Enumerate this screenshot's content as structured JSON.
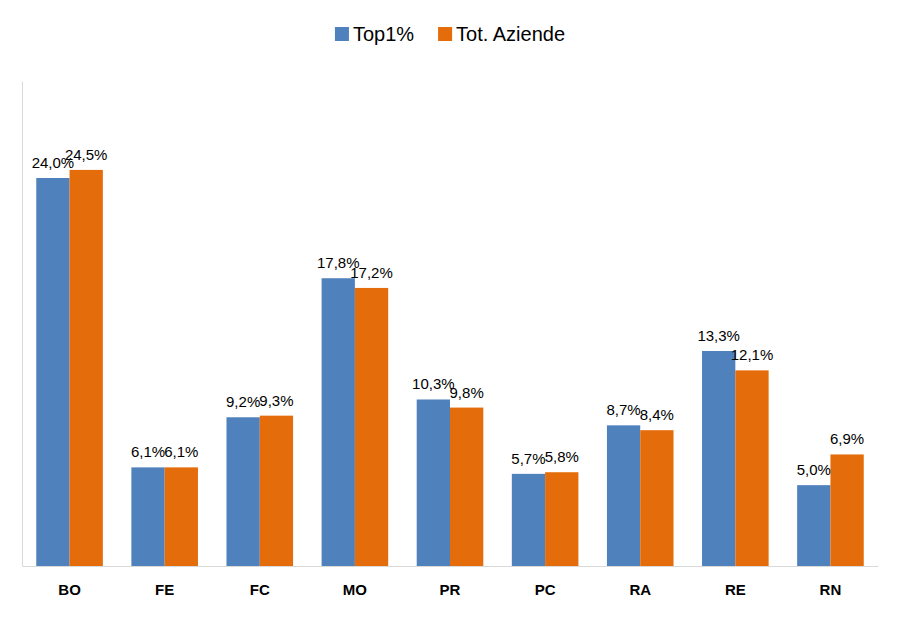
{
  "chart_data": {
    "type": "bar",
    "categories": [
      "BO",
      "FE",
      "FC",
      "MO",
      "PR",
      "PC",
      "RA",
      "RE",
      "RN"
    ],
    "series": [
      {
        "name": "Top1%",
        "color": "#4f81bd",
        "values": [
          24.0,
          6.1,
          9.2,
          17.8,
          10.3,
          5.7,
          8.7,
          13.3,
          5.0
        ],
        "value_labels": [
          "24,0%",
          "6,1%",
          "9,2%",
          "17,8%",
          "10,3%",
          "5,7%",
          "8,7%",
          "13,3%",
          "5,0%"
        ]
      },
      {
        "name": "Tot. Aziende",
        "color": "#e46c0a",
        "values": [
          24.5,
          6.1,
          9.3,
          17.2,
          9.8,
          5.8,
          8.4,
          12.1,
          6.9
        ],
        "value_labels": [
          "24,5%",
          "6,1%",
          "9,3%",
          "17,2%",
          "9,8%",
          "5,8%",
          "8,4%",
          "12,1%",
          "6,9%"
        ]
      }
    ],
    "ylim": [
      0,
      30
    ],
    "yticks": [],
    "grid": false,
    "legend": "top",
    "data_labels": true,
    "tick_labels": "x"
  }
}
